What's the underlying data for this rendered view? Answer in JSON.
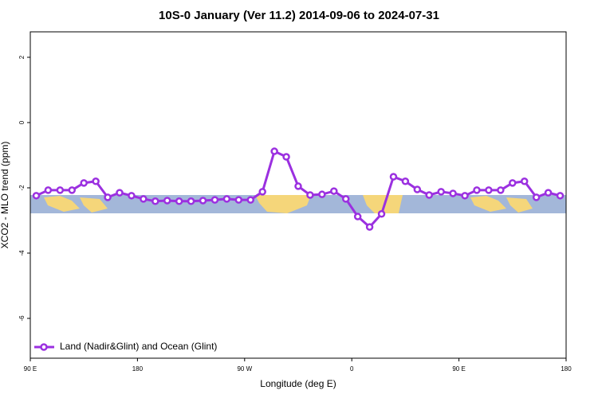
{
  "chart_data": {
    "type": "line",
    "title": "10S-0 January (Ver 11.2)   2014-09-06 to 2024-07-31",
    "x_label": "Longitude (deg E)",
    "y_label": "XCO2 - MLO trend (ppm)",
    "x": [
      95,
      105,
      115,
      125,
      135,
      145,
      155,
      165,
      175,
      185,
      195,
      205,
      215,
      225,
      235,
      245,
      255,
      265,
      275,
      285,
      295,
      305,
      315,
      325,
      335,
      345,
      355,
      365,
      375,
      385,
      395,
      405,
      415,
      425,
      435,
      445,
      455,
      465,
      475,
      485,
      495,
      505,
      515,
      525,
      535
    ],
    "series": [
      {
        "name": "Land (Nadir&Glint) and Ocean (Glint)",
        "color": "#9b30e0",
        "values": [
          -2.24,
          -2.07,
          -2.07,
          -2.07,
          -1.85,
          -1.8,
          -2.29,
          -2.15,
          -2.24,
          -2.34,
          -2.41,
          -2.39,
          -2.41,
          -2.41,
          -2.39,
          -2.37,
          -2.34,
          -2.37,
          -2.37,
          -2.12,
          -0.88,
          -1.05,
          -1.95,
          -2.22,
          -2.2,
          -2.1,
          -2.34,
          -2.88,
          -3.2,
          -2.8,
          -1.66,
          -1.8,
          -2.05,
          -2.22,
          -2.12,
          -2.17,
          -2.24,
          -2.07,
          -2.07,
          -2.07,
          -1.85,
          -1.8,
          -2.29,
          -2.15,
          -2.24
        ]
      }
    ],
    "xlim": [
      90,
      540
    ],
    "xticks": [
      {
        "value": 90,
        "label": "90 E"
      },
      {
        "value": 180,
        "label": "180"
      },
      {
        "value": 270,
        "label": "90 W"
      },
      {
        "value": 360,
        "label": "0"
      },
      {
        "value": 450,
        "label": "90 E"
      },
      {
        "value": 540,
        "label": "180"
      }
    ],
    "ylim": [
      -7.22,
      2.78
    ],
    "yticks": [
      2,
      0,
      -2,
      -4,
      -6
    ],
    "legend": "bottom-left"
  }
}
